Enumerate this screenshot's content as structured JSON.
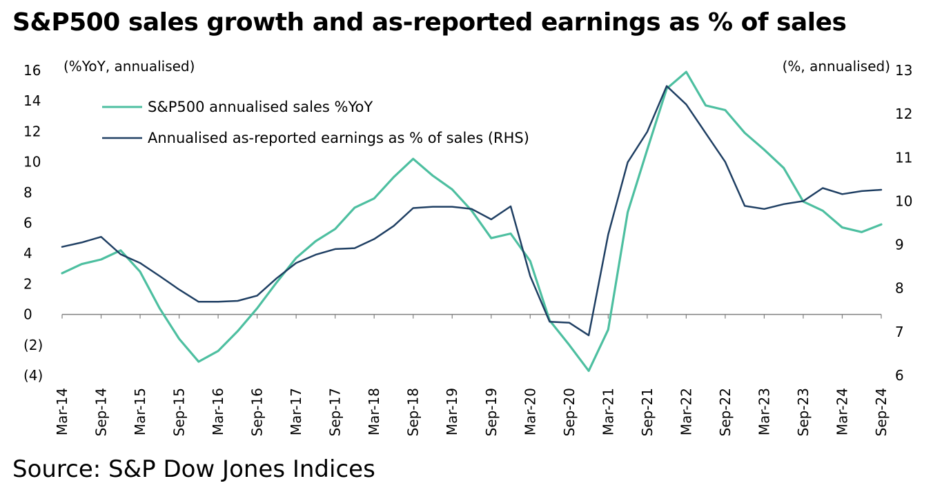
{
  "title": "S&P500 sales growth and as-reported earnings as % of sales",
  "source": "Source: S&P Dow Jones Indices",
  "chart_data": {
    "type": "line",
    "x": [
      "Mar-14",
      "Jun-14",
      "Sep-14",
      "Dec-14",
      "Mar-15",
      "Jun-15",
      "Sep-15",
      "Dec-15",
      "Mar-16",
      "Jun-16",
      "Sep-16",
      "Dec-16",
      "Mar-17",
      "Jun-17",
      "Sep-17",
      "Dec-17",
      "Mar-18",
      "Jun-18",
      "Sep-18",
      "Dec-18",
      "Mar-19",
      "Jun-19",
      "Sep-19",
      "Dec-19",
      "Mar-20",
      "Jun-20",
      "Sep-20",
      "Dec-20",
      "Mar-21",
      "Jun-21",
      "Sep-21",
      "Dec-21",
      "Mar-22",
      "Jun-22",
      "Sep-22",
      "Dec-22",
      "Mar-23",
      "Jun-23",
      "Sep-23",
      "Dec-23",
      "Mar-24",
      "Jun-24",
      "Sep-24"
    ],
    "x_tick_labels": [
      "Mar-14",
      "Sep-14",
      "Mar-15",
      "Sep-15",
      "Mar-16",
      "Sep-16",
      "Mar-17",
      "Sep-17",
      "Mar-18",
      "Sep-18",
      "Mar-19",
      "Sep-19",
      "Mar-20",
      "Sep-20",
      "Mar-21",
      "Sep-21",
      "Mar-22",
      "Sep-22",
      "Mar-23",
      "Sep-23",
      "Mar-24",
      "Sep-24"
    ],
    "y_left": {
      "unit_label": "(%YoY, annualised)",
      "range": [
        -4,
        16
      ],
      "ticks": [
        -4,
        -2,
        0,
        2,
        4,
        6,
        8,
        10,
        12,
        14,
        16
      ],
      "tick_labels": [
        "(4)",
        "(2)",
        "0",
        "2",
        "4",
        "6",
        "8",
        "10",
        "12",
        "14",
        "16"
      ]
    },
    "y_right": {
      "unit_label": "(%, annualised)",
      "range": [
        6,
        13
      ],
      "ticks": [
        6,
        7,
        8,
        9,
        10,
        11,
        12,
        13
      ],
      "tick_labels": [
        "6",
        "7",
        "8",
        "9",
        "10",
        "11",
        "12",
        "13"
      ]
    },
    "grid": false,
    "legend_position": "top-left",
    "series": [
      {
        "name": "S&P500 annualised sales %YoY",
        "axis": "left",
        "color": "#4dbfa0",
        "values": [
          2.7,
          3.3,
          3.6,
          4.2,
          2.8,
          0.4,
          -1.6,
          -3.1,
          -2.4,
          -1.1,
          0.4,
          2.1,
          3.7,
          4.8,
          5.6,
          7.0,
          7.6,
          9.0,
          10.2,
          9.1,
          8.2,
          6.8,
          5.0,
          5.3,
          3.5,
          -0.4,
          -2.0,
          -3.7,
          -1.0,
          6.7,
          10.8,
          14.8,
          15.9,
          13.7,
          13.4,
          11.9,
          10.8,
          9.6,
          7.4,
          6.8,
          5.7,
          5.4,
          5.9
        ]
      },
      {
        "name": "Annualised as-reported earnings as % of sales (RHS)",
        "axis": "right",
        "color": "#1f3f63",
        "values": [
          8.95,
          9.05,
          9.18,
          8.78,
          8.58,
          8.28,
          7.97,
          7.69,
          7.69,
          7.71,
          7.83,
          8.23,
          8.58,
          8.77,
          8.9,
          8.92,
          9.13,
          9.43,
          9.84,
          9.87,
          9.87,
          9.82,
          9.58,
          9.88,
          8.28,
          7.23,
          7.21,
          6.92,
          9.23,
          10.89,
          11.59,
          12.64,
          12.22,
          11.56,
          10.9,
          9.89,
          9.82,
          9.93,
          10.0,
          10.3,
          10.16,
          10.23,
          10.26
        ]
      }
    ]
  }
}
